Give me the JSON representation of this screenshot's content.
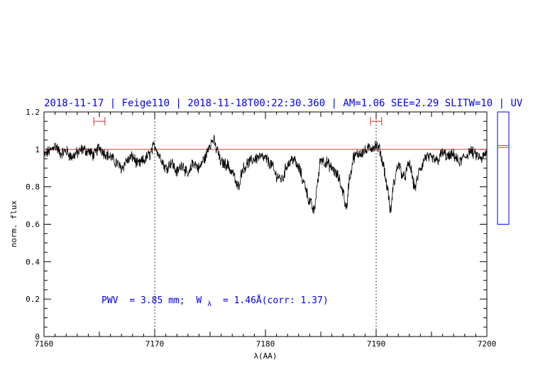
{
  "chart_data": {
    "type": "line",
    "title": "2018-11-17 | Feige110 | 2018-11-18T00:22:30.360 | AM=1.06 SEE=2.29 SLITW=10 | UV",
    "xlabel": "λ(AA)",
    "ylabel": "norm. flux",
    "xlim": [
      7160,
      7200
    ],
    "ylim": [
      0,
      1.2
    ],
    "x_ticks": [
      7160,
      7170,
      7180,
      7190,
      7200
    ],
    "x_tick_labels": [
      "7160",
      "7170",
      "7180",
      "7190",
      "7200"
    ],
    "y_ticks": [
      0,
      0.2,
      0.4,
      0.6,
      0.8,
      1,
      1.2
    ],
    "y_tick_labels": [
      "0",
      "0.2",
      "0.4",
      "0.6",
      "0.8",
      "1",
      "1.2"
    ],
    "continuum_level": 1.0,
    "vertical_markers": [
      7170,
      7190
    ],
    "intervals": [
      {
        "x_from": 7164.5,
        "x_to": 7165.5,
        "y": 1.15
      },
      {
        "x_from": 7189.5,
        "x_to": 7190.5,
        "y": 1.15
      }
    ],
    "annotation": {
      "pwv_label": "PWV",
      "pwv_value": "= 3.85 mm;",
      "w_symbol": "W",
      "w_subscript": "λ",
      "w_value": "= 1.46Å(corr: 1.37)"
    },
    "spectrum_anchors": {
      "x": [
        7160,
        7160.5,
        7161,
        7161.5,
        7162,
        7162.5,
        7163,
        7163.5,
        7164,
        7164.5,
        7165,
        7165.5,
        7166,
        7166.5,
        7167,
        7167.5,
        7168,
        7168.5,
        7169,
        7169.5,
        7170,
        7170.5,
        7171,
        7171.5,
        7172,
        7172.5,
        7173,
        7173.5,
        7174,
        7174.5,
        7175,
        7175.3,
        7175.6,
        7176,
        7176.5,
        7177,
        7177.5,
        7178,
        7178.5,
        7179,
        7179.5,
        7180,
        7180.5,
        7181,
        7181.5,
        7182,
        7182.5,
        7183,
        7183.5,
        7184,
        7184.4,
        7184.7,
        7185,
        7185.5,
        7186,
        7186.5,
        7187,
        7187.3,
        7187.6,
        7188,
        7188.5,
        7189,
        7189.5,
        7190,
        7190.3,
        7190.6,
        7191,
        7191.3,
        7191.6,
        7192,
        7192.5,
        7193,
        7193.5,
        7194,
        7194.5,
        7195,
        7195.5,
        7196,
        7196.5,
        7197,
        7197.5,
        7198,
        7198.5,
        7199,
        7199.5,
        7200
      ],
      "y": [
        0.97,
        0.99,
        1.02,
        0.98,
        0.99,
        0.96,
        0.98,
        1.0,
        0.99,
        0.97,
        1.01,
        0.98,
        0.96,
        0.93,
        0.9,
        0.94,
        0.96,
        0.92,
        0.94,
        0.97,
        1.02,
        0.96,
        0.9,
        0.93,
        0.88,
        0.92,
        0.86,
        0.93,
        0.9,
        0.95,
        1.03,
        1.05,
        1.0,
        0.93,
        0.92,
        0.88,
        0.8,
        0.9,
        0.93,
        0.95,
        0.96,
        0.95,
        0.92,
        0.86,
        0.84,
        0.92,
        0.95,
        0.9,
        0.82,
        0.72,
        0.67,
        0.82,
        0.95,
        0.93,
        0.9,
        0.86,
        0.78,
        0.68,
        0.85,
        0.96,
        0.98,
        0.99,
        1.01,
        1.02,
        1.0,
        0.93,
        0.8,
        0.67,
        0.82,
        0.92,
        0.85,
        0.92,
        0.8,
        0.9,
        0.96,
        0.95,
        0.94,
        0.98,
        0.96,
        0.97,
        0.93,
        0.96,
        0.99,
        0.97,
        0.95,
        0.98
      ]
    },
    "side_panel": {
      "ylim": [
        0,
        1.2
      ],
      "box_y_range": [
        0.6,
        1.2
      ],
      "red_lines": [
        1.01,
        1.02
      ]
    }
  }
}
